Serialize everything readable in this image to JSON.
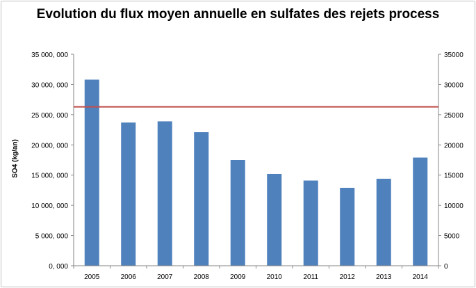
{
  "chart_data": {
    "type": "bar",
    "title": "Evolution du flux moyen annuelle en sulfates des rejets process",
    "ylabel": "SO4 (kg/an)",
    "xlabel": "",
    "categories": [
      "2005",
      "2006",
      "2007",
      "2008",
      "2009",
      "2010",
      "2011",
      "2012",
      "2013",
      "2014"
    ],
    "values": [
      30800000,
      23700000,
      23900000,
      22100000,
      17500000,
      15200000,
      14100000,
      12900000,
      14400000,
      17900000
    ],
    "ylim": [
      0,
      35000000
    ],
    "left_ticks": [
      "0, 000",
      "5 000, 000",
      "10 000, 000",
      "15 000, 000",
      "20 000, 000",
      "25 000, 000",
      "30 000, 000",
      "35 000, 000"
    ],
    "right_ticks": [
      "0",
      "5000",
      "10000",
      "15000",
      "20000",
      "25000",
      "30000",
      "35000"
    ],
    "reference_line": {
      "value": 26300,
      "axis": "secondary"
    },
    "grid": false,
    "colors": {
      "bar": "#4f81bd",
      "reference_line": "#c0504d",
      "axis": "#868686"
    }
  }
}
